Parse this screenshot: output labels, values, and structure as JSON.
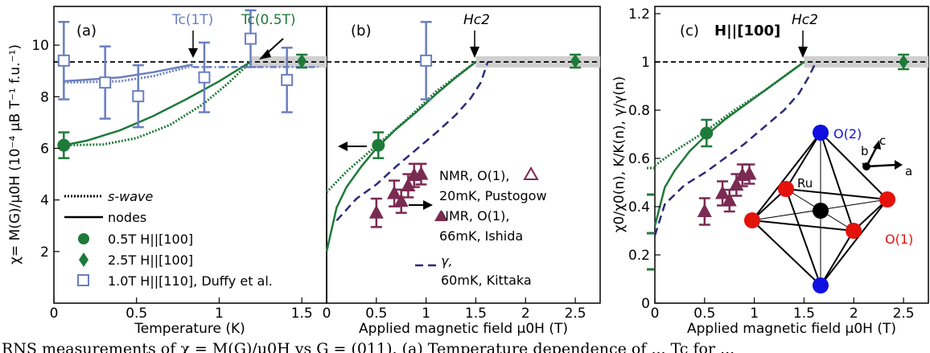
{
  "colors": {
    "green": "#1f7a3a",
    "lightgreen": "#6fbf73",
    "blue": "#6a7fc1",
    "purple": "#7b2a52",
    "navy": "#2b2b7a",
    "band": "#cfcfcf",
    "atom_o": "#e3120b",
    "atom_o2": "#1010e0",
    "atom_ru": "#000000"
  },
  "chart_data": [
    {
      "type": "scatter",
      "panel_label": "(a)",
      "xlabel": "Temperature (K)",
      "ylabel": "χ= M(G)/μ0H (10⁻⁴ μB T⁻¹ f.u.⁻¹)",
      "xlim": [
        0,
        1.65
      ],
      "ylim": [
        0,
        11.5
      ],
      "xticks": [
        0,
        0.5,
        1,
        1.5
      ],
      "xtick_labels": [
        "0",
        "0.5",
        "1",
        "1.5"
      ],
      "yticks": [
        2,
        4,
        6,
        8,
        10
      ],
      "ytick_labels": [
        "2",
        "4",
        "6",
        "8",
        "10"
      ],
      "normal_state_level": 9.35,
      "annotations": [
        {
          "text": "Tc(1T)",
          "x": 0.84,
          "color": "blue"
        },
        {
          "text": "Tc(0.5T)",
          "x": 1.19,
          "color": "green"
        }
      ],
      "legend": [
        "s-wave",
        "nodes",
        "0.5T H||[100]",
        "2.5T H||[100]",
        "1.0T H||[110], Duffy et al."
      ],
      "series": [
        {
          "name": "0.5T H||[100]",
          "marker": "circle",
          "color": "green",
          "x": [
            0.06
          ],
          "y": [
            6.12
          ],
          "err": [
            0.5
          ]
        },
        {
          "name": "2.5T H||[100]",
          "marker": "diamond",
          "color": "green",
          "x": [
            1.5
          ],
          "y": [
            9.38
          ],
          "err": [
            0.25
          ]
        },
        {
          "name": "1.0T H||[110], Duffy et al.",
          "marker": "square-open",
          "color": "blue",
          "x": [
            0.06,
            0.31,
            0.51,
            0.91,
            1.19,
            1.41
          ],
          "y": [
            9.4,
            8.55,
            8.02,
            8.75,
            10.25,
            8.65
          ],
          "err": [
            1.5,
            1.4,
            1.2,
            1.35,
            1.1,
            1.25
          ]
        },
        {
          "name": "nodes",
          "style": "solid",
          "color": "green",
          "x": [
            0.06,
            0.2,
            0.4,
            0.6,
            0.8,
            1.0,
            1.19
          ],
          "y": [
            6.12,
            6.3,
            6.7,
            7.25,
            7.9,
            8.6,
            9.35
          ]
        },
        {
          "name": "s-wave",
          "style": "dotted",
          "color": "green",
          "x": [
            0.06,
            0.3,
            0.5,
            0.7,
            0.9,
            1.05,
            1.19
          ],
          "y": [
            6.12,
            6.15,
            6.4,
            6.9,
            7.7,
            8.5,
            9.35
          ]
        },
        {
          "name": "1.0T nodes",
          "style": "solid",
          "color": "blue",
          "x": [
            0.06,
            0.4,
            0.6,
            0.84
          ],
          "y": [
            8.6,
            8.75,
            8.95,
            9.25
          ]
        },
        {
          "name": "1.0T s-wave",
          "style": "dotted",
          "color": "blue",
          "x": [
            0.06,
            0.4,
            0.6,
            0.84
          ],
          "y": [
            8.55,
            8.6,
            8.8,
            9.2
          ]
        },
        {
          "name": "1.0T normal",
          "style": "dash-dot",
          "color": "blue",
          "x": [
            0.84,
            1.6
          ],
          "y": [
            9.15,
            9.15
          ]
        }
      ]
    },
    {
      "type": "scatter",
      "panel_label": "(b)",
      "xlabel": "Applied magnetic field μ0H (T)",
      "xlim": [
        0,
        2.75
      ],
      "ylim": [
        0,
        11.5
      ],
      "xticks": [
        0,
        0.5,
        1,
        1.5,
        2,
        2.5
      ],
      "xtick_labels": [
        "0",
        "0.5",
        "1",
        "1.5",
        "2",
        "2.5"
      ],
      "normal_state_level": 9.35,
      "annotations": [
        {
          "text": "Hc2",
          "x": 1.5
        }
      ],
      "legend": [
        "NMR, O(1), 20mK, Pustogow",
        "NMR, O(1), 66mK, Ishida",
        "γ, 60mK, Kittaka"
      ],
      "series": [
        {
          "name": "0.5T",
          "marker": "circle",
          "color": "green",
          "x": [
            0.52
          ],
          "y": [
            6.12
          ],
          "err": [
            0.5
          ]
        },
        {
          "name": "2.5T",
          "marker": "diamond",
          "color": "green",
          "x": [
            2.5
          ],
          "y": [
            9.38
          ],
          "err": [
            0.25
          ]
        },
        {
          "name": "1.0T Duffy",
          "marker": "square-open",
          "color": "blue",
          "x": [
            1.0
          ],
          "y": [
            9.4
          ],
          "err": [
            1.5
          ]
        },
        {
          "name": "nodes",
          "style": "solid",
          "color": "green",
          "x": [
            0.0,
            0.1,
            0.2,
            0.35,
            0.5,
            0.7,
            0.9,
            1.1,
            1.3,
            1.5
          ],
          "y": [
            2.0,
            3.7,
            4.5,
            5.3,
            6.0,
            6.75,
            7.4,
            8.1,
            8.75,
            9.35
          ]
        },
        {
          "name": "s-wave",
          "style": "dotted",
          "color": "green",
          "x": [
            0.0,
            0.2,
            0.5,
            0.8,
            1.1,
            1.5
          ],
          "y": [
            4.3,
            5.1,
            6.1,
            7.1,
            8.2,
            9.35
          ]
        },
        {
          "name": "γ, 60mK, Kittaka",
          "style": "dashed",
          "color": "navy",
          "x": [
            0.1,
            0.3,
            0.5,
            0.7,
            0.9,
            1.1,
            1.3,
            1.45,
            1.55,
            1.62
          ],
          "y": [
            3.2,
            4.05,
            4.6,
            5.3,
            5.95,
            6.6,
            7.3,
            7.95,
            8.55,
            9.35
          ]
        },
        {
          "name": "NMR, O(1), 20mK, Pustogow",
          "marker": "triangle-open",
          "color": "purple",
          "x": [],
          "y": []
        },
        {
          "name": "NMR, O(1), 66mK, Ishida",
          "marker": "triangle",
          "color": "purple",
          "x": [
            0.5,
            0.68,
            0.75,
            0.82,
            0.88,
            0.95
          ],
          "y": [
            3.5,
            4.25,
            3.95,
            4.55,
            4.95,
            5.0
          ],
          "err": [
            0.55,
            0.5,
            0.45,
            0.45,
            0.45,
            0.4
          ]
        }
      ]
    },
    {
      "type": "scatter",
      "panel_label": "(c)",
      "title": "H||[100]",
      "xlabel": "Applied magnetic field μ0H (T)",
      "ylabel": "χ0/χ0(n), K/K(n), γ/γ(n)",
      "xlim": [
        0,
        2.75
      ],
      "ylim": [
        0,
        1.23
      ],
      "xticks": [
        0,
        0.5,
        1,
        1.5,
        2,
        2.5
      ],
      "xtick_labels": [
        "0",
        "0.5",
        "1",
        "1.5",
        "2",
        "2.5"
      ],
      "yticks": [
        0,
        0.2,
        0.4,
        0.6,
        0.8,
        1,
        1.2
      ],
      "ytick_labels": [
        "0",
        "0.2",
        "0.4",
        "0.6",
        "0.8",
        "1",
        "1.2"
      ],
      "normal_state_level": 1.0,
      "annotations": [
        {
          "text": "Hc2",
          "x": 1.5
        }
      ],
      "left_axis_ticks": [
        0.56,
        0.45,
        0.29,
        0.14
      ],
      "series": [
        {
          "name": "0.5T",
          "marker": "circle",
          "color": "green",
          "x": [
            0.52
          ],
          "y": [
            0.705
          ],
          "err": [
            0.055
          ]
        },
        {
          "name": "2.5T",
          "marker": "diamond",
          "color": "green",
          "x": [
            2.5
          ],
          "y": [
            1.0
          ],
          "err": [
            0.03
          ]
        },
        {
          "name": "nodes",
          "style": "solid",
          "color": "green",
          "x": [
            0.0,
            0.1,
            0.2,
            0.35,
            0.5,
            0.7,
            0.9,
            1.1,
            1.3,
            1.5
          ],
          "y": [
            0.32,
            0.48,
            0.55,
            0.63,
            0.69,
            0.76,
            0.82,
            0.88,
            0.94,
            1.0
          ]
        },
        {
          "name": "s-wave",
          "style": "dotted",
          "color": "green",
          "x": [
            0.0,
            0.2,
            0.5,
            0.8,
            1.1,
            1.5
          ],
          "y": [
            0.57,
            0.63,
            0.71,
            0.8,
            0.88,
            1.0
          ]
        },
        {
          "name": "γ",
          "style": "dashed",
          "color": "navy",
          "x": [
            0.0,
            0.1,
            0.3,
            0.5,
            0.7,
            0.9,
            1.1,
            1.3,
            1.45,
            1.55,
            1.62
          ],
          "y": [
            0.28,
            0.41,
            0.49,
            0.54,
            0.6,
            0.66,
            0.73,
            0.8,
            0.87,
            0.94,
            1.0
          ]
        },
        {
          "name": "NMR",
          "marker": "triangle",
          "color": "purple",
          "x": [
            0.5,
            0.68,
            0.75,
            0.82,
            0.88,
            0.95
          ],
          "y": [
            0.38,
            0.455,
            0.425,
            0.49,
            0.53,
            0.535
          ],
          "err": [
            0.055,
            0.05,
            0.045,
            0.045,
            0.045,
            0.04
          ]
        }
      ],
      "inset": {
        "labels": [
          "O(2)",
          "Ru",
          "O(1)",
          "c",
          "b",
          "a"
        ]
      }
    }
  ],
  "caption": "RNS measurements of χ = M(G)/μ0H vs G = (011). (a) Temperature dependence of ... Tc for ..."
}
